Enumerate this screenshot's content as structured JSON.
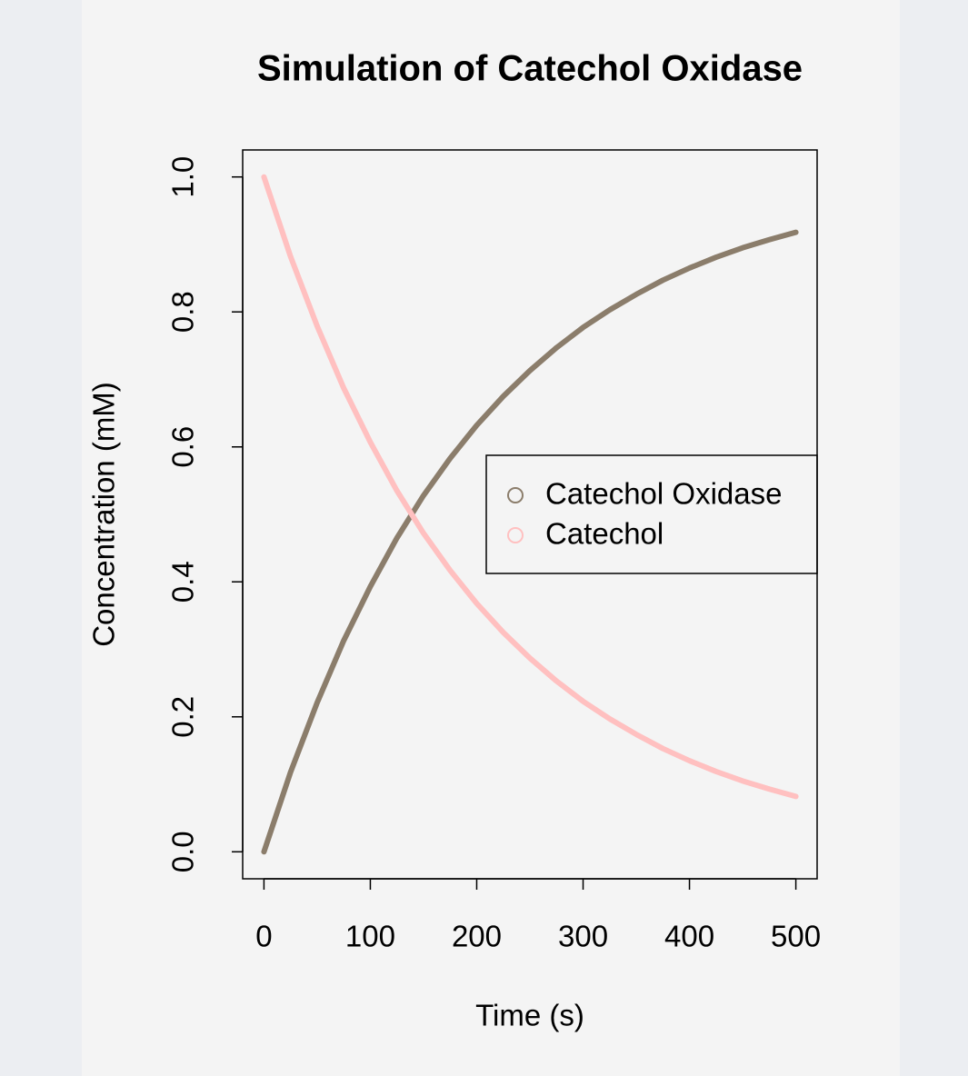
{
  "chart_data": {
    "type": "line",
    "title": "Simulation of Catechol Oxidase",
    "x_label": "Time (s)",
    "y_label": "Concentration (mM)",
    "x": [
      0,
      25,
      50,
      75,
      100,
      125,
      150,
      175,
      200,
      225,
      250,
      275,
      300,
      325,
      350,
      375,
      400,
      425,
      450,
      475,
      500
    ],
    "series": [
      {
        "name": "Catechol Oxidase",
        "color": "#8b7d6b",
        "values": [
          0,
          0.118,
          0.221,
          0.313,
          0.393,
          0.465,
          0.528,
          0.583,
          0.632,
          0.675,
          0.713,
          0.747,
          0.777,
          0.803,
          0.826,
          0.847,
          0.865,
          0.881,
          0.895,
          0.907,
          0.918
        ]
      },
      {
        "name": "Catechol",
        "color": "#ffc0c0",
        "values": [
          1,
          0.882,
          0.779,
          0.687,
          0.607,
          0.535,
          0.472,
          0.417,
          0.368,
          0.325,
          0.287,
          0.253,
          0.223,
          0.197,
          0.174,
          0.153,
          0.135,
          0.119,
          0.105,
          0.093,
          0.082
        ]
      }
    ],
    "xlim": [
      -20,
      520
    ],
    "ylim": [
      -0.04,
      1.04
    ],
    "xticks": [
      0,
      100,
      200,
      300,
      400,
      500
    ],
    "yticks": [
      {
        "value": 0,
        "label": "0.0"
      },
      0.2,
      0.4,
      0.6,
      0.8,
      {
        "value": 1,
        "label": "1.0"
      }
    ],
    "legend": "right"
  }
}
